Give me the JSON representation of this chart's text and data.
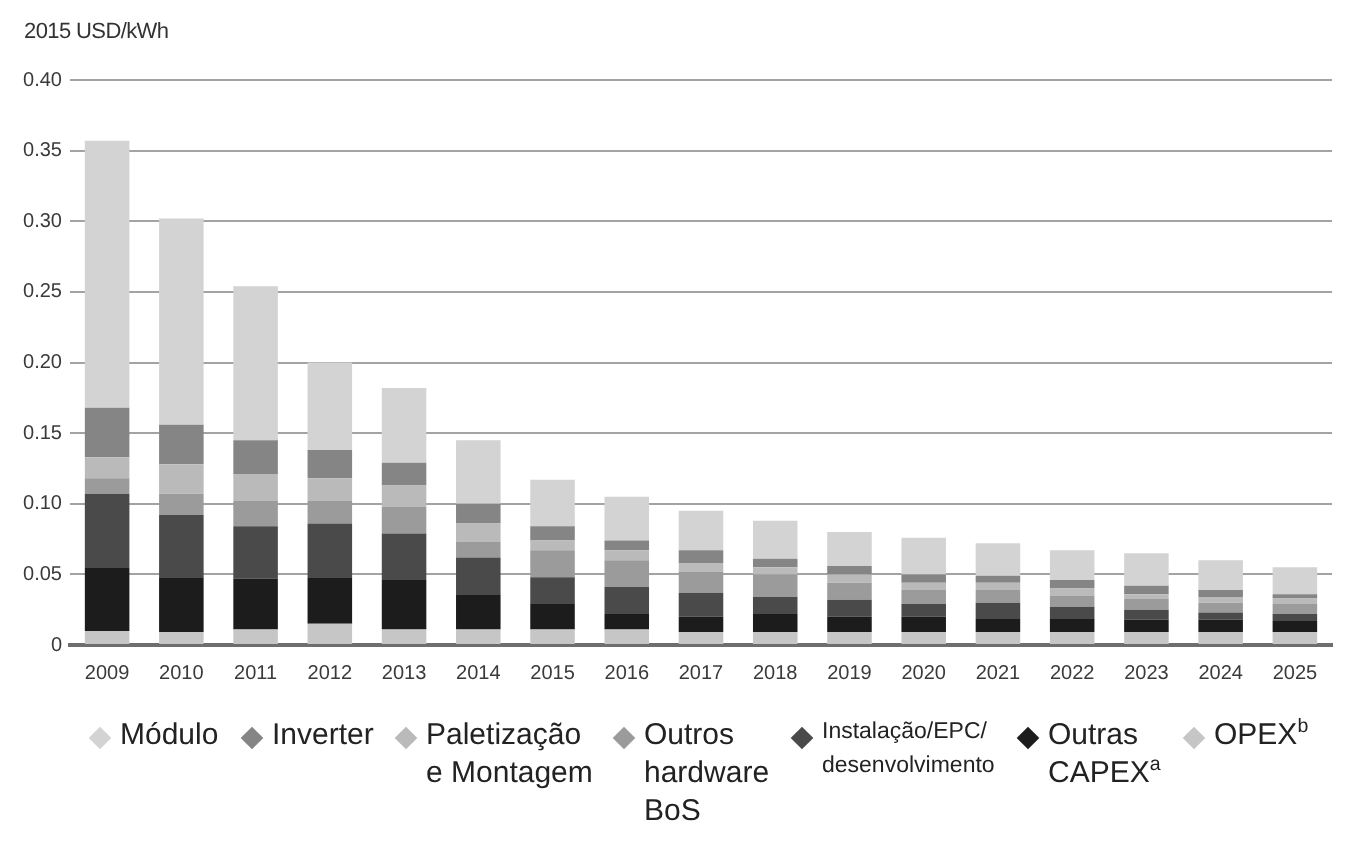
{
  "chart_data": {
    "type": "bar",
    "stacked": true,
    "ylabel": "2015 USD/kWh",
    "categories": [
      "2009",
      "2010",
      "2011",
      "2012",
      "2013",
      "2014",
      "2015",
      "2016",
      "2017",
      "2018",
      "2019",
      "2020",
      "2021",
      "2022",
      "2023",
      "2024",
      "2025"
    ],
    "series": [
      {
        "name": "OPEX$^{b}$",
        "color": "#c6c6c6",
        "values": [
          0.01,
          0.009,
          0.011,
          0.015,
          0.011,
          0.011,
          0.011,
          0.011,
          0.009,
          0.009,
          0.009,
          0.009,
          0.009,
          0.009,
          0.009,
          0.009,
          0.009
        ]
      },
      {
        "name": "Outras CAPEX$^{a}$",
        "color": "#1c1c1c",
        "values": [
          0.045,
          0.039,
          0.036,
          0.033,
          0.035,
          0.025,
          0.018,
          0.011,
          0.011,
          0.013,
          0.011,
          0.011,
          0.01,
          0.01,
          0.009,
          0.009,
          0.008
        ]
      },
      {
        "name": "Instalação/EPC/desenvolvimento",
        "color": "#4a4a4a",
        "values": [
          0.052,
          0.044,
          0.037,
          0.038,
          0.033,
          0.026,
          0.019,
          0.019,
          0.017,
          0.012,
          0.012,
          0.009,
          0.011,
          0.008,
          0.007,
          0.005,
          0.005
        ]
      },
      {
        "name": "Outros hardware BoS",
        "color": "#9b9b9b",
        "values": [
          0.011,
          0.015,
          0.018,
          0.016,
          0.019,
          0.011,
          0.019,
          0.019,
          0.015,
          0.016,
          0.012,
          0.01,
          0.009,
          0.008,
          0.008,
          0.007,
          0.007
        ]
      },
      {
        "name": "Paletização e Montagem",
        "color": "#bababa",
        "values": [
          0.015,
          0.021,
          0.019,
          0.016,
          0.015,
          0.013,
          0.007,
          0.007,
          0.006,
          0.005,
          0.006,
          0.005,
          0.005,
          0.005,
          0.003,
          0.004,
          0.004
        ]
      },
      {
        "name": "Inverter",
        "color": "#858585",
        "values": [
          0.035,
          0.028,
          0.024,
          0.02,
          0.016,
          0.014,
          0.01,
          0.007,
          0.009,
          0.006,
          0.006,
          0.006,
          0.005,
          0.006,
          0.006,
          0.005,
          0.003
        ]
      },
      {
        "name": "Módulo",
        "color": "#d3d3d3",
        "values": [
          0.189,
          0.146,
          0.109,
          0.062,
          0.053,
          0.045,
          0.033,
          0.031,
          0.028,
          0.027,
          0.024,
          0.026,
          0.023,
          0.021,
          0.023,
          0.021,
          0.019
        ]
      }
    ],
    "ylim": [
      0,
      0.4
    ],
    "yticks": [
      0,
      0.05,
      {
        "value": 0.1,
        "label": "0.10"
      },
      0.15,
      {
        "value": 0.2,
        "label": "0.20"
      },
      0.25,
      {
        "value": 0.3,
        "label": "0.30"
      },
      0.35,
      {
        "value": 0.4,
        "label": "0.40"
      }
    ],
    "grid": "y",
    "legend": "bottom"
  }
}
